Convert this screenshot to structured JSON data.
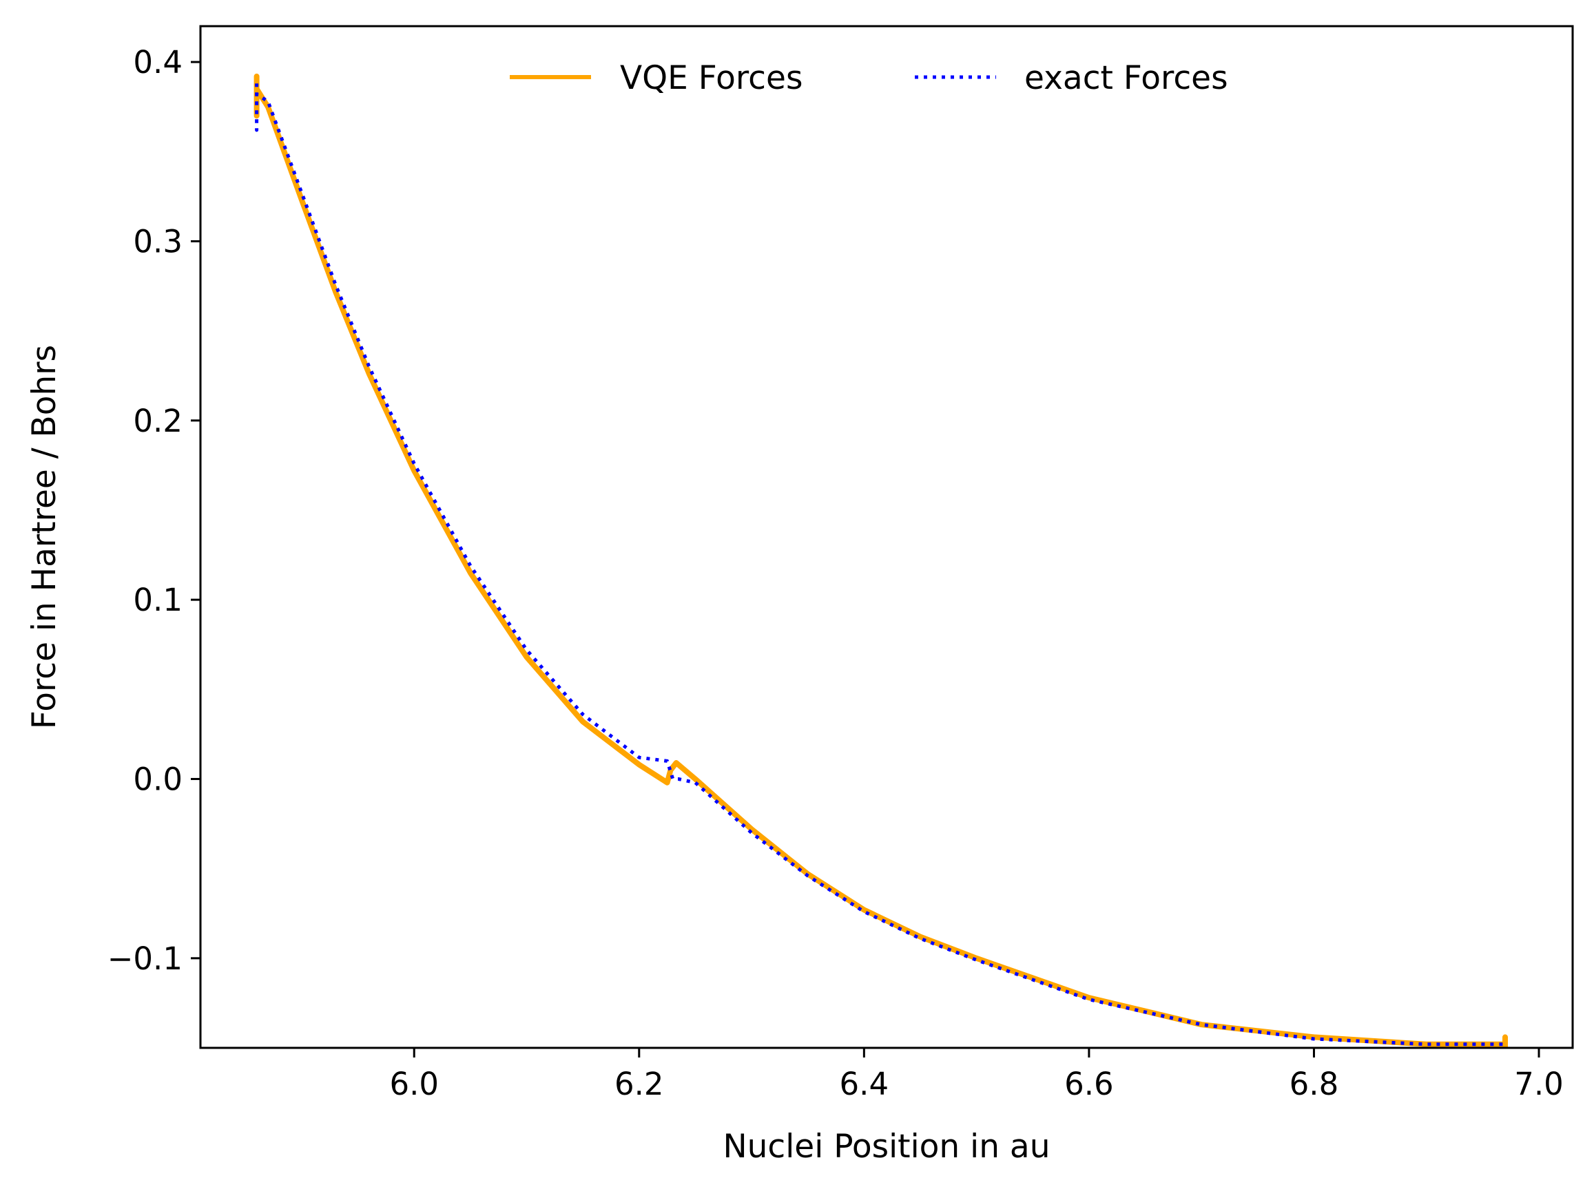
{
  "chart_data": {
    "type": "line",
    "title": "",
    "xlabel": "Nuclei Position in au",
    "ylabel": "Force in Hartree / Bohrs",
    "xlim": [
      5.81,
      7.03
    ],
    "ylim": [
      -0.15,
      0.42
    ],
    "xticks": [
      6.0,
      6.2,
      6.4,
      6.6,
      6.8,
      7.0
    ],
    "xtick_labels": [
      "6.0",
      "6.2",
      "6.4",
      "6.6",
      "6.8",
      "7.0"
    ],
    "yticks": [
      -0.1,
      0.0,
      0.1,
      0.2,
      0.3,
      0.4
    ],
    "ytick_labels": [
      "−0.1",
      "0.0",
      "0.1",
      "0.2",
      "0.3",
      "0.4"
    ],
    "grid": false,
    "legend_placement": "upper-center",
    "series": [
      {
        "name": "VQE Forces",
        "color": "#FFA500",
        "style": "solid",
        "x": [
          5.86,
          5.86,
          5.86,
          5.87,
          5.9,
          5.93,
          5.96,
          6.0,
          6.05,
          6.1,
          6.15,
          6.2,
          6.225,
          6.228,
          6.233,
          6.25,
          6.3,
          6.35,
          6.4,
          6.45,
          6.5,
          6.6,
          6.7,
          6.8,
          6.9,
          6.97,
          6.97,
          6.97
        ],
        "y": [
          0.392,
          0.37,
          0.385,
          0.375,
          0.323,
          0.272,
          0.226,
          0.172,
          0.115,
          0.068,
          0.032,
          0.008,
          -0.002,
          0.005,
          0.009,
          0.0,
          -0.028,
          -0.053,
          -0.073,
          -0.088,
          -0.1,
          -0.122,
          -0.137,
          -0.144,
          -0.148,
          -0.148,
          -0.144,
          -0.152
        ]
      },
      {
        "name": "exact Forces",
        "color": "#0000FF",
        "style": "dotted",
        "x": [
          5.86,
          5.86,
          5.86,
          5.87,
          5.9,
          5.93,
          5.96,
          6.0,
          6.05,
          6.1,
          6.15,
          6.2,
          6.225,
          6.23,
          6.235,
          6.25,
          6.3,
          6.35,
          6.4,
          6.45,
          6.5,
          6.6,
          6.7,
          6.8,
          6.9,
          6.97,
          6.97
        ],
        "y": [
          0.388,
          0.362,
          0.382,
          0.378,
          0.327,
          0.276,
          0.23,
          0.176,
          0.119,
          0.072,
          0.036,
          0.012,
          0.01,
          0.0,
          0.0,
          -0.002,
          -0.03,
          -0.054,
          -0.074,
          -0.089,
          -0.101,
          -0.123,
          -0.137,
          -0.145,
          -0.148,
          -0.148,
          -0.15
        ]
      }
    ]
  }
}
